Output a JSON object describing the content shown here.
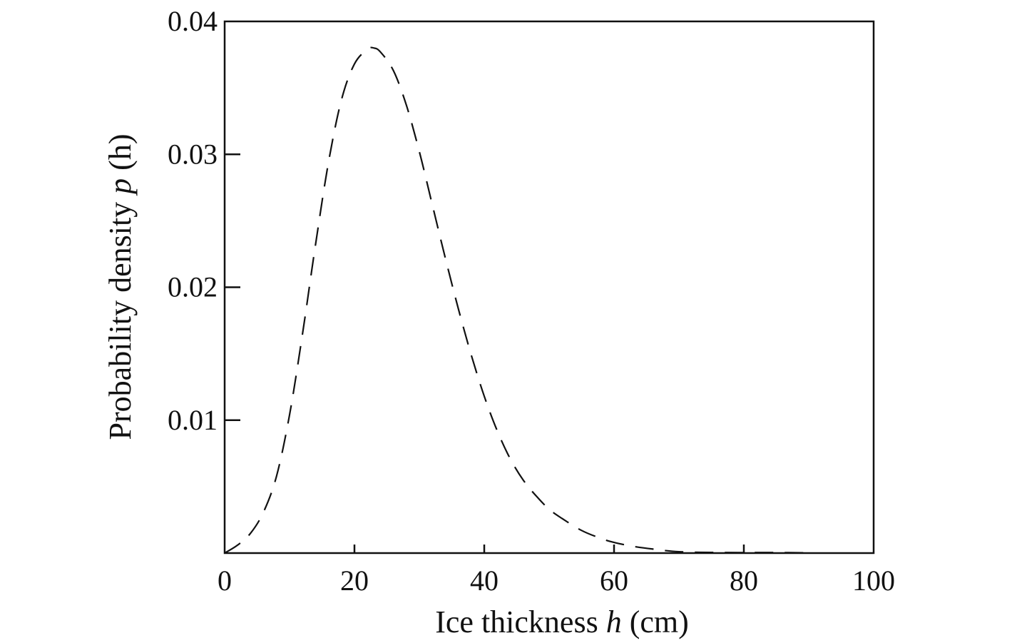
{
  "chart_data": {
    "type": "line",
    "title": "",
    "xlabel": {
      "prefix": "Ice thickness ",
      "variable": "h",
      "suffix": " (cm)"
    },
    "ylabel": {
      "prefix": "Probability density ",
      "variable": "p",
      "suffix": " (h)"
    },
    "xlim": [
      0,
      100
    ],
    "ylim": [
      0,
      0.04
    ],
    "x_ticks": [
      {
        "value": 0,
        "label": "0"
      },
      {
        "value": 20,
        "label": "20"
      },
      {
        "value": 40,
        "label": "40"
      },
      {
        "value": 60,
        "label": "60"
      },
      {
        "value": 80,
        "label": "80"
      },
      {
        "value": 100,
        "label": "100"
      }
    ],
    "y_ticks": [
      {
        "value": 0.01,
        "label": "0.01"
      },
      {
        "value": 0.02,
        "label": "0.02"
      },
      {
        "value": 0.03,
        "label": "0.03"
      },
      {
        "value": 0.04,
        "label": "0.04"
      }
    ],
    "grid": false,
    "line_style": "dashed",
    "series": [
      {
        "x": [
          0,
          2,
          4,
          6,
          8,
          10,
          12,
          14,
          16,
          18,
          20,
          22,
          23,
          24,
          26,
          28,
          30,
          32,
          34,
          36,
          38,
          40,
          42,
          44,
          46,
          48,
          50,
          52,
          55,
          58,
          60,
          63,
          66,
          70,
          75,
          80,
          85,
          90
        ],
        "values": [
          0,
          0.0006,
          0.0015,
          0.0031,
          0.0058,
          0.0104,
          0.0165,
          0.0232,
          0.0294,
          0.0341,
          0.0368,
          0.0379,
          0.038,
          0.0377,
          0.0363,
          0.0337,
          0.0302,
          0.0262,
          0.0222,
          0.0184,
          0.0149,
          0.0118,
          0.0092,
          0.0071,
          0.0055,
          0.0043,
          0.0033,
          0.0026,
          0.0017,
          0.0011,
          0.0008,
          0.0005,
          0.0003,
          0.0001,
          5e-05,
          4e-05,
          4e-05,
          2e-05
        ]
      }
    ]
  }
}
